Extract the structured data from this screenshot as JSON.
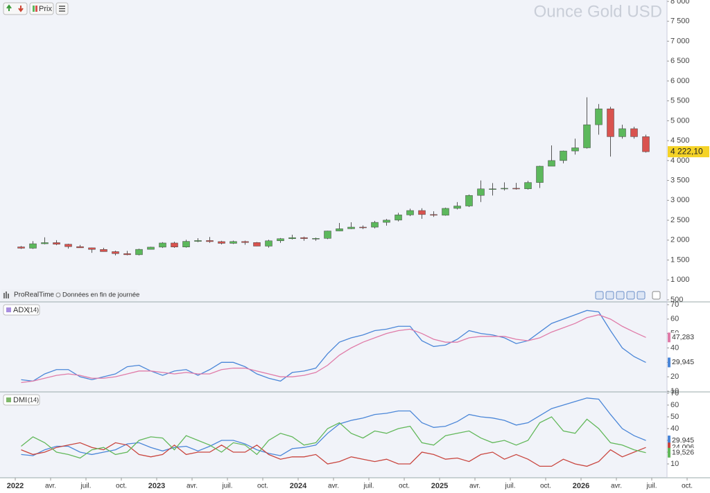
{
  "toolbar": {
    "price_button": "Prix"
  },
  "source": {
    "brand": "ProRealTime",
    "note": "Données en fin de journée"
  },
  "chart_data": [
    {
      "type": "candlestick",
      "title": "Ounce Gold USD",
      "categories": [
        "2022",
        null,
        null,
        "avr.",
        null,
        null,
        "juil.",
        null,
        null,
        "oct.",
        null,
        null,
        "2023",
        null,
        null,
        "avr.",
        null,
        null,
        "juil.",
        null,
        null,
        "oct.",
        null,
        null,
        "2024",
        null,
        null,
        "avr.",
        null,
        null,
        "juil.",
        null,
        null,
        "oct.",
        null,
        null,
        "2025",
        null,
        null,
        "avr.",
        null,
        null,
        "juil.",
        null,
        null,
        "oct.",
        null,
        null,
        "2026",
        null,
        null,
        "avr.",
        null,
        null,
        "juil.",
        null,
        null,
        "oct."
      ],
      "open": [
        1830,
        1797,
        1909,
        1937,
        1897,
        1837,
        1807,
        1766,
        1711,
        1661,
        1633,
        1768,
        1824,
        1928,
        1827,
        1969,
        1990,
        1963,
        1919,
        1965,
        1940,
        1849,
        1983,
        2036,
        2063,
        2039,
        2044,
        2230,
        2286,
        2327,
        2326,
        2447,
        2503,
        2634,
        2744,
        2643,
        2625,
        2798,
        2858,
        3124,
        3288,
        3289,
        3303,
        3290,
        3448,
        3858,
        4000,
        4240,
        4320,
        4900,
        5300,
        4600,
        4800,
        4600,
        null,
        null,
        null,
        null
      ],
      "high": [
        1853,
        1974,
        2070,
        1998,
        1909,
        1879,
        1814,
        1807,
        1735,
        1729,
        1786,
        1833,
        1949,
        1959,
        2009,
        2048,
        2079,
        1983,
        1987,
        1987,
        1953,
        2009,
        2052,
        2135,
        2088,
        2065,
        2236,
        2431,
        2450,
        2368,
        2483,
        2531,
        2685,
        2790,
        2801,
        2726,
        2817,
        2956,
        3148,
        3500,
        3435,
        3451,
        3439,
        3490,
        3870,
        4380,
        4250,
        4550,
        5590,
        5420,
        5350,
        4900,
        4850,
        4650,
        null,
        null,
        null,
        null
      ],
      "low": [
        1780,
        1780,
        1895,
        1872,
        1786,
        1805,
        1681,
        1709,
        1615,
        1617,
        1616,
        1765,
        1804,
        1805,
        1809,
        1949,
        1932,
        1893,
        1902,
        1884,
        1846,
        1810,
        1931,
        2017,
        1984,
        1984,
        2024,
        2228,
        2277,
        2277,
        2294,
        2364,
        2471,
        2604,
        2536,
        2583,
        2614,
        2770,
        2832,
        2957,
        3120,
        3248,
        3268,
        3268,
        3311,
        3890,
        3930,
        4150,
        4300,
        4650,
        4100,
        4550,
        4550,
        4200,
        null,
        null,
        null,
        null
      ],
      "close": [
        1797,
        1909,
        1937,
        1897,
        1837,
        1807,
        1766,
        1711,
        1661,
        1633,
        1768,
        1824,
        1928,
        1827,
        1969,
        1990,
        1963,
        1919,
        1965,
        1940,
        1849,
        1983,
        2036,
        2063,
        2039,
        2044,
        2230,
        2286,
        2327,
        2326,
        2447,
        2503,
        2634,
        2744,
        2643,
        2625,
        2798,
        2858,
        3124,
        3288,
        3289,
        3303,
        3290,
        3448,
        3858,
        4000,
        4240,
        4320,
        4900,
        5300,
        4600,
        4800,
        4600,
        4222.1,
        null,
        null,
        null,
        null
      ],
      "last_label": "4 222,10",
      "up_color": "#5cb85c",
      "down_color": "#d9534f",
      "ylim": [
        500,
        8000
      ],
      "yticks": [
        500,
        {
          "value": 1000,
          "label": "1 000"
        },
        {
          "value": 1500,
          "label": "1 500"
        },
        {
          "value": 2000,
          "label": "2 000"
        },
        {
          "value": 2500,
          "label": "2 500"
        },
        {
          "value": 3000,
          "label": "3 000"
        },
        {
          "value": 3500,
          "label": "3 500"
        },
        {
          "value": 4000,
          "label": "4 000"
        },
        {
          "value": 4500,
          "label": "4 500"
        },
        {
          "value": 5000,
          "label": "5 000"
        },
        {
          "value": 5500,
          "label": "5 500"
        },
        {
          "value": 6000,
          "label": "6 000"
        },
        {
          "value": 6500,
          "label": "6 500"
        },
        {
          "value": 7000,
          "label": "7 000"
        },
        {
          "value": 7500,
          "label": "7 500"
        },
        {
          "value": 8000,
          "label": "8 000"
        }
      ]
    },
    {
      "type": "line",
      "title": "ADX",
      "subtitle": "(14)",
      "ylim": [
        10,
        70
      ],
      "yticks": [
        10,
        20,
        30,
        40,
        50,
        60,
        70
      ],
      "series": [
        {
          "color": "#4a86d8",
          "last_label": "29,945",
          "values": [
            18,
            17,
            22,
            25,
            25,
            20,
            18,
            20,
            22,
            27,
            28,
            24,
            21,
            24,
            25,
            21,
            25,
            30,
            30,
            27,
            22,
            19,
            17,
            23,
            24,
            26,
            36,
            44,
            47,
            49,
            52,
            53,
            55,
            55,
            45,
            41,
            42,
            46,
            52,
            50,
            49,
            47,
            43,
            45,
            51,
            57,
            60,
            63,
            66,
            65,
            52,
            40,
            34,
            29.945,
            null,
            null,
            null,
            null
          ]
        },
        {
          "color": "#e07ba8",
          "last_label": "47,283",
          "values": [
            16,
            17,
            19,
            21,
            22,
            21,
            19,
            19,
            20,
            22,
            24,
            24,
            23,
            22,
            23,
            22,
            22,
            25,
            26,
            26,
            24,
            22,
            20,
            20,
            21,
            23,
            28,
            35,
            40,
            44,
            47,
            50,
            52,
            53,
            50,
            46,
            44,
            44,
            47,
            48,
            48,
            48,
            46,
            45,
            47,
            51,
            54,
            57,
            61,
            63,
            60,
            55,
            51,
            47.283,
            null,
            null,
            null,
            null
          ]
        }
      ]
    },
    {
      "type": "line",
      "title": "DMI",
      "subtitle": "(14)",
      "ylim": [
        0,
        70
      ],
      "yticks": [
        10,
        20,
        30,
        40,
        50,
        60,
        70
      ],
      "series": [
        {
          "color": "#4a86d8",
          "last_label": "29,945",
          "values": [
            18,
            17,
            22,
            25,
            25,
            20,
            18,
            20,
            22,
            27,
            28,
            24,
            21,
            24,
            25,
            21,
            25,
            30,
            30,
            27,
            22,
            19,
            17,
            23,
            24,
            26,
            36,
            44,
            47,
            49,
            52,
            53,
            55,
            55,
            45,
            41,
            42,
            46,
            52,
            50,
            49,
            47,
            43,
            45,
            51,
            57,
            60,
            63,
            66,
            65,
            52,
            40,
            34,
            29.945,
            null,
            null,
            null,
            null
          ]
        },
        {
          "color": "#c9453e",
          "last_label": "24,006",
          "values": [
            22,
            18,
            20,
            24,
            26,
            28,
            24,
            22,
            28,
            26,
            18,
            16,
            18,
            26,
            18,
            20,
            20,
            26,
            20,
            20,
            26,
            18,
            14,
            16,
            16,
            18,
            10,
            12,
            16,
            14,
            12,
            14,
            10,
            10,
            20,
            18,
            14,
            15,
            12,
            18,
            20,
            14,
            18,
            14,
            8,
            8,
            14,
            10,
            8,
            12,
            22,
            16,
            20,
            24.006,
            null,
            null,
            null,
            null
          ]
        },
        {
          "color": "#62b85a",
          "last_label": "19,526",
          "values": [
            25,
            33,
            28,
            20,
            18,
            15,
            22,
            24,
            18,
            20,
            30,
            33,
            32,
            22,
            34,
            30,
            26,
            20,
            28,
            26,
            18,
            30,
            36,
            33,
            26,
            28,
            40,
            45,
            36,
            32,
            38,
            36,
            40,
            42,
            28,
            26,
            34,
            36,
            38,
            32,
            28,
            30,
            26,
            30,
            45,
            50,
            38,
            36,
            48,
            40,
            28,
            26,
            22,
            19.526,
            null,
            null,
            null,
            null
          ]
        }
      ]
    }
  ]
}
